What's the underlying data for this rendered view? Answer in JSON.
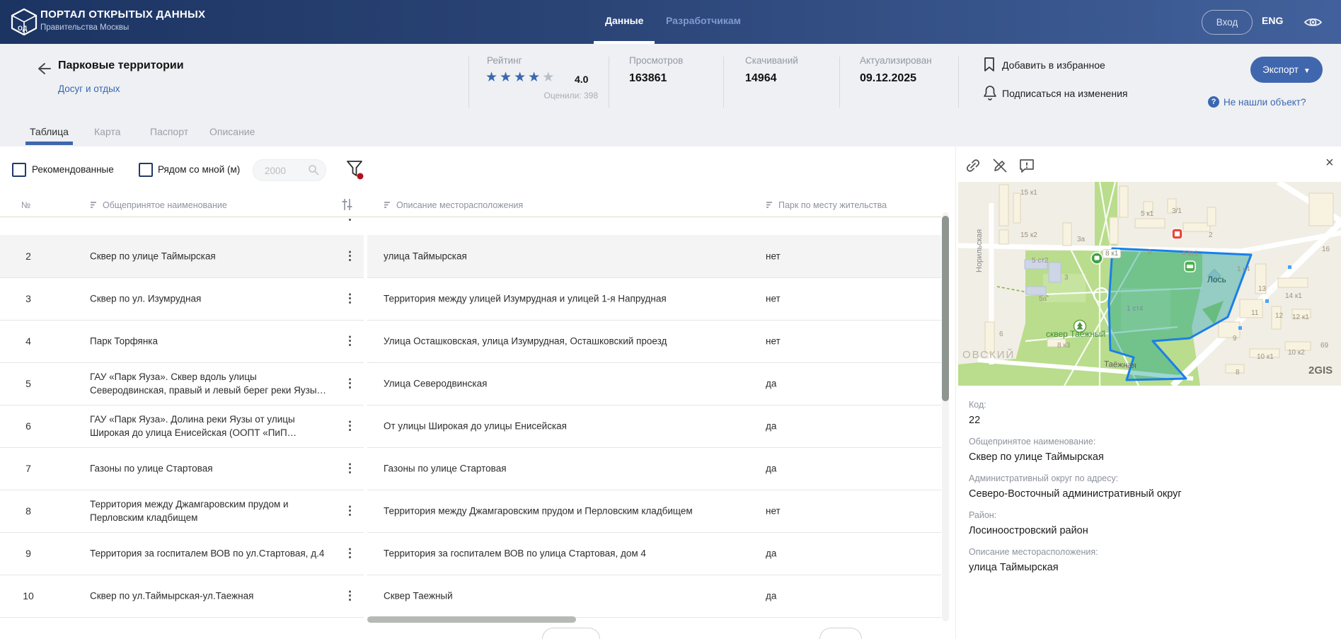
{
  "header": {
    "title": "ПОРТАЛ ОТКРЫТЫХ ДАННЫХ",
    "subtitle": "Правительства Москвы",
    "nav": [
      {
        "label": "Данные",
        "active": true
      },
      {
        "label": "Разработчикам",
        "active": false
      }
    ],
    "login": "Вход",
    "lang": "ENG"
  },
  "info": {
    "title": "Парковые территории",
    "category": "Досуг и отдых",
    "rating_label": "Рейтинг",
    "rating_value": "4.0",
    "rating_votes": "Оценили: 398",
    "stars_filled": 4,
    "stars_total": 5,
    "views_label": "Просмотров",
    "views": "163861",
    "downloads_label": "Скачиваний",
    "downloads": "14964",
    "updated_label": "Актуализирован",
    "updated": "09.12.2025",
    "favorite": "Добавить в избранное",
    "subscribe": "Подписаться на изменения",
    "export_label": "Экспорт",
    "not_found": "Не нашли объект?"
  },
  "tabs": [
    {
      "label": "Таблица",
      "active": true
    },
    {
      "label": "Карта",
      "active": false
    },
    {
      "label": "Паспорт",
      "active": false
    },
    {
      "label": "Описание",
      "active": false
    }
  ],
  "filters": {
    "recommended": "Рекомендованные",
    "near_me": "Рядом со мной (м)",
    "distance_placeholder": "2000"
  },
  "table": {
    "col_num": "№",
    "col_name": "Общепринятое наименование",
    "col_desc": "Описание месторасположения",
    "col_local": "Парк по месту жительства",
    "rows": [
      {
        "num": "2",
        "name": "Сквер по улице Таймырская",
        "desc": "улица Таймырская",
        "local": "нет",
        "selected": true
      },
      {
        "num": "3",
        "name": "Сквер по ул. Изумрудная",
        "desc": "Территория между улицей Изумрудная и улицей 1-я Напрудная",
        "local": "нет"
      },
      {
        "num": "4",
        "name": "Парк Торфянка",
        "desc": "Улица Осташковская, улица Изумрудная, Осташковский проезд",
        "local": "нет"
      },
      {
        "num": "5",
        "name": "ГАУ «Парк Яуза». Сквер вдоль улицы Северодвинская, правый и левый берег реки Яузы…",
        "desc": "Улица Северодвинская",
        "local": "да"
      },
      {
        "num": "6",
        "name": "ГАУ «Парк Яуза». Долина реки Яузы от улицы Широкая до улица Енисейская (ООПТ «ПиП…",
        "desc": "От улицы Широкая до улицы Енисейская",
        "local": "да"
      },
      {
        "num": "7",
        "name": "Газоны по улице Стартовая",
        "desc": "Газоны по улице Стартовая",
        "local": "да"
      },
      {
        "num": "8",
        "name": "Территория между Джамгаровским прудом и Перловским кладбищем",
        "desc": "Территория между Джамгаровским прудом и Перловским кладбищем",
        "local": "нет"
      },
      {
        "num": "9",
        "name": "Территория за госпиталем ВОВ по ул.Стартовая, д.4",
        "desc": "Территория за госпиталем ВОВ по улица Стартовая, дом 4",
        "local": "да"
      },
      {
        "num": "10",
        "name": "Сквер по ул.Таймырская-ул.Таежная",
        "desc": "Сквер Таежный",
        "local": "да"
      }
    ]
  },
  "panel": {
    "close": "×",
    "map": {
      "street_left": "Норильская",
      "park_label": "сквер Таёжный",
      "street_bottom": "Таёжная",
      "station_label": "Лось",
      "district_label": "ОВСКИЙ",
      "watermark": "2GIS",
      "houses": [
        "15 к1",
        "15 к2",
        "5 ст2",
        "3",
        "5а",
        "3а",
        "8 к1",
        "5 к1",
        "3/1",
        "6",
        "4 ст1",
        "2",
        "16",
        "1 к4",
        "13",
        "14 к1",
        "11",
        "12",
        "12 к1",
        "9",
        "10 к1",
        "10 к2",
        "69",
        "8",
        "8 к3",
        "6",
        "1 ст4"
      ]
    },
    "details": [
      {
        "label": "Код:",
        "value": "22"
      },
      {
        "label": "Общепринятое наименование:",
        "value": "Сквер по улице Таймырская"
      },
      {
        "label": "Административный округ по адресу:",
        "value": "Северо-Восточный административный округ"
      },
      {
        "label": "Район:",
        "value": "Лосиноостровский район"
      },
      {
        "label": "Описание месторасположения:",
        "value": "улица Таймырская"
      }
    ],
    "accent_color": "#1a7fe8",
    "polygon_fill": "rgba(0,150,140,0.38)"
  }
}
